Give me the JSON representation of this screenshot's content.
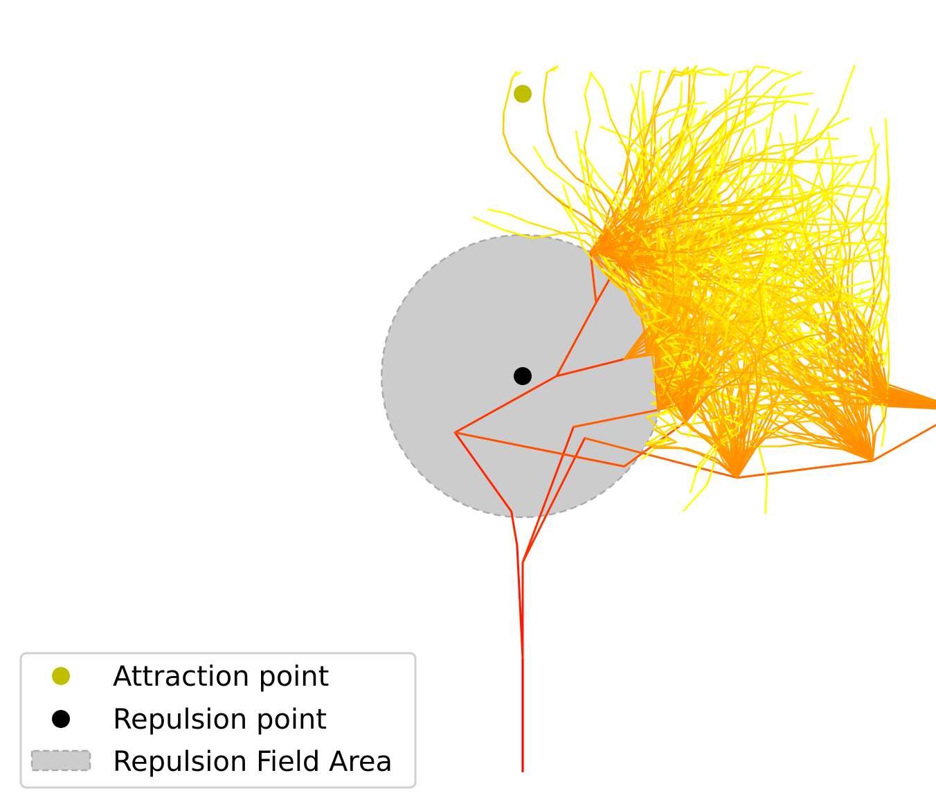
{
  "chart_data": {
    "type": "line",
    "title": "",
    "xlabel": "",
    "ylabel": "",
    "axes_visible": false,
    "grid": false,
    "xlim": [
      -3.6,
      3.6
    ],
    "ylim": [
      -3.8,
      3.05
    ],
    "colormap": [
      "#ff0000",
      "#ff4500",
      "#ff8c00",
      "#ffc000",
      "#ffff00"
    ],
    "attraction_point": {
      "label": "Attraction point",
      "x": 0,
      "y": 2.5,
      "color": "#bfbf00"
    },
    "repulsion_point": {
      "label": "Repulsion point",
      "x": 0,
      "y": 0,
      "color": "#000000"
    },
    "repulsion_field": {
      "label": "Repulsion Field Area",
      "center": [
        0,
        0
      ],
      "radius": 1.25,
      "fill": "#cccccc",
      "edge": "#aaaaaa"
    },
    "tree": {
      "trunk": [
        [
          0,
          -3.5
        ],
        [
          0,
          -2.5
        ]
      ],
      "skeleton": [
        [
          [
            0,
            -2.5
          ],
          [
            -0.05,
            -1.5
          ]
        ],
        [
          [
            0,
            -2.5
          ],
          [
            0.0,
            -1.65
          ]
        ],
        [
          [
            -0.05,
            -1.5
          ],
          [
            -0.1,
            -1.2
          ]
        ],
        [
          [
            -0.1,
            -1.2
          ],
          [
            -0.6,
            -0.5
          ]
        ],
        [
          [
            0.0,
            -1.65
          ],
          [
            0.45,
            -0.45
          ]
        ],
        [
          [
            0.0,
            -1.65
          ],
          [
            0.55,
            -0.55
          ]
        ],
        [
          [
            -0.6,
            -0.5
          ],
          [
            0.3,
            0.0
          ]
        ],
        [
          [
            0.3,
            0.0
          ],
          [
            0.9,
            0.15
          ]
        ],
        [
          [
            0.3,
            0.0
          ],
          [
            0.65,
            0.65
          ]
        ],
        [
          [
            0.65,
            0.65
          ],
          [
            0.85,
            1.0
          ]
        ],
        [
          [
            0.65,
            0.65
          ],
          [
            0.6,
            1.1
          ]
        ],
        [
          [
            -0.6,
            -0.5
          ],
          [
            0.9,
            -0.8
          ]
        ],
        [
          [
            0.9,
            -0.8
          ],
          [
            1.45,
            -0.4
          ]
        ],
        [
          [
            0.45,
            -0.45
          ],
          [
            1.2,
            -0.3
          ]
        ],
        [
          [
            0.55,
            -0.55
          ],
          [
            1.9,
            -0.9
          ]
        ],
        [
          [
            1.9,
            -0.9
          ],
          [
            3.1,
            -0.75
          ]
        ],
        [
          [
            3.1,
            -0.75
          ],
          [
            3.9,
            -0.3
          ]
        ],
        [
          [
            3.9,
            -0.3
          ],
          [
            4.6,
            0.2
          ]
        ]
      ],
      "crown_center": [
        1.4,
        1.0
      ],
      "branch_count": 400,
      "seed": 7
    }
  },
  "legend": {
    "position": "lower-left",
    "items": [
      {
        "label": "Attraction point",
        "marker": "circle",
        "color": "#bfbf00"
      },
      {
        "label": "Repulsion point",
        "marker": "circle",
        "color": "#000000"
      },
      {
        "label": "Repulsion Field Area",
        "marker": "patch",
        "color": "#cccccc"
      }
    ]
  }
}
